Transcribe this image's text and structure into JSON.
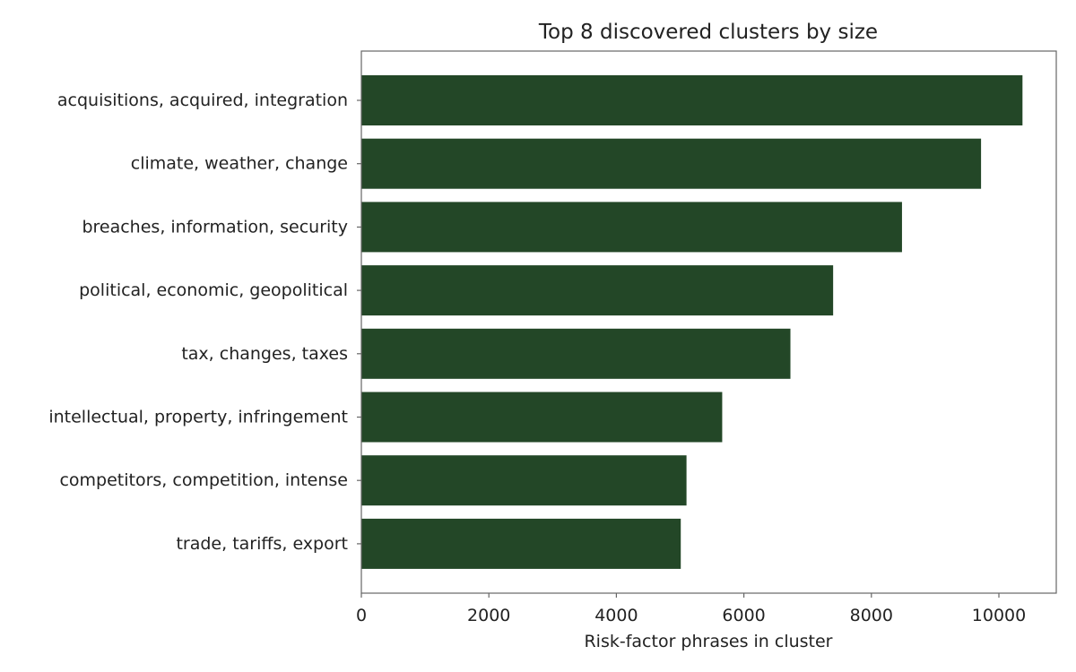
{
  "chart_data": {
    "type": "bar",
    "orientation": "horizontal",
    "title": "Top 8 discovered clusters by size",
    "xlabel": "Risk-factor phrases in cluster",
    "ylabel": "",
    "categories": [
      "acquisitions, acquired, integration",
      "climate, weather, change",
      "breaches, information, security",
      "political, economic, geopolitical",
      "tax, changes, taxes",
      "intellectual, property, infringement",
      "competitors, competition, intense",
      "trade, tariffs, export"
    ],
    "values": [
      10370,
      9720,
      8480,
      7400,
      6730,
      5660,
      5100,
      5010
    ],
    "xlim": [
      0,
      10900
    ],
    "xticks": [
      0,
      2000,
      4000,
      6000,
      8000,
      10000
    ],
    "xtick_labels": [
      "0",
      "2000",
      "4000",
      "6000",
      "8000",
      "10000"
    ],
    "bar_color": "#234727",
    "grid": false,
    "legend": "none"
  }
}
